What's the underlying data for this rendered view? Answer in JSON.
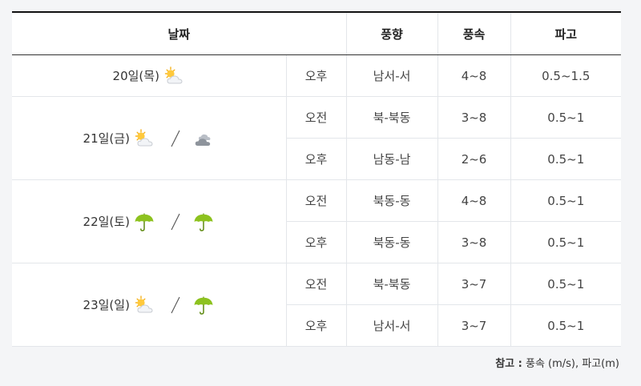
{
  "table": {
    "headers": {
      "date": "날짜",
      "direction": "풍향",
      "speed": "풍속",
      "wave": "파고"
    },
    "days": [
      {
        "date": "20일(목)",
        "icons": [
          "sun-cloud-icon"
        ],
        "rows": [
          {
            "period": "오후",
            "direction": "남서-서",
            "speed": "4~8",
            "wave": "0.5~1.5"
          }
        ]
      },
      {
        "date": "21일(금)",
        "icons": [
          "sun-cloud-icon",
          "cloudy-icon"
        ],
        "rows": [
          {
            "period": "오전",
            "direction": "북-북동",
            "speed": "3~8",
            "wave": "0.5~1"
          },
          {
            "period": "오후",
            "direction": "남동-남",
            "speed": "2~6",
            "wave": "0.5~1"
          }
        ]
      },
      {
        "date": "22일(토)",
        "icons": [
          "umbrella-icon",
          "umbrella-icon"
        ],
        "rows": [
          {
            "period": "오전",
            "direction": "북동-동",
            "speed": "4~8",
            "wave": "0.5~1"
          },
          {
            "period": "오후",
            "direction": "북동-동",
            "speed": "3~8",
            "wave": "0.5~1"
          }
        ]
      },
      {
        "date": "23일(일)",
        "icons": [
          "sun-cloud-icon",
          "umbrella-icon"
        ],
        "rows": [
          {
            "period": "오전",
            "direction": "북-북동",
            "speed": "3~7",
            "wave": "0.5~1"
          },
          {
            "period": "오후",
            "direction": "남서-서",
            "speed": "3~7",
            "wave": "0.5~1"
          }
        ]
      }
    ]
  },
  "note": {
    "label": "참고 :",
    "text": "풍속 (m/s), 파고(m)"
  }
}
